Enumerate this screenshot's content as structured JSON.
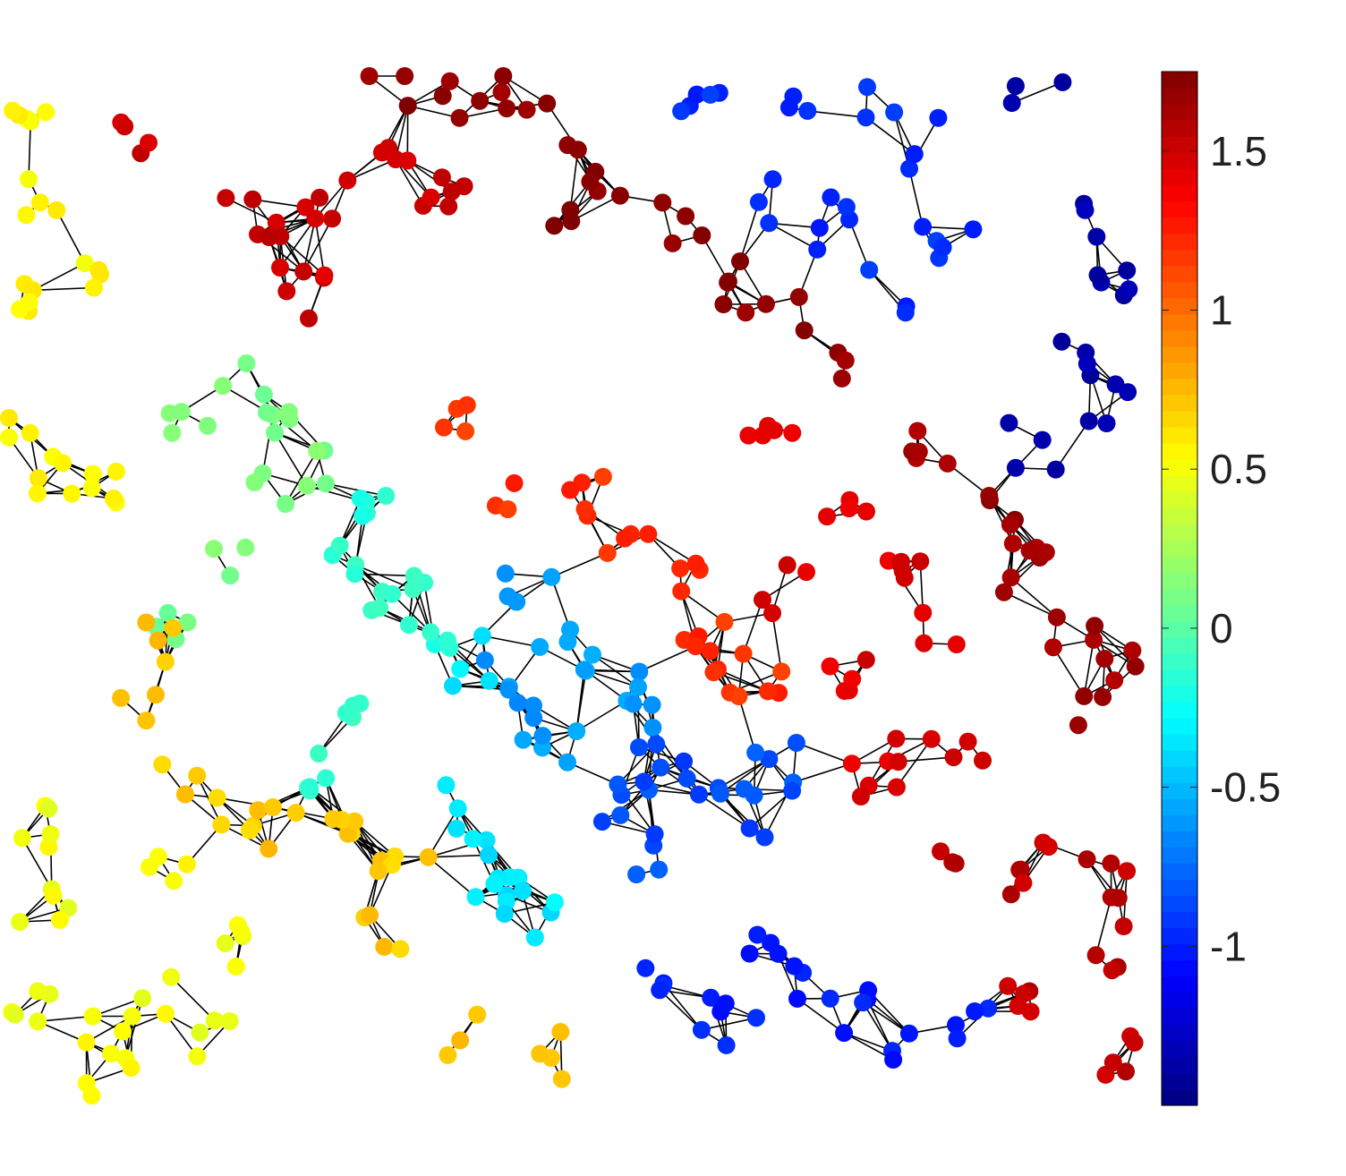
{
  "chart_data": {
    "type": "graph-network",
    "colormap": "jet",
    "colorbar": {
      "min": -1.5,
      "max": 1.75,
      "ticks": [
        {
          "value": 1.5,
          "label": "1.5"
        },
        {
          "value": 1.0,
          "label": "1"
        },
        {
          "value": 0.5,
          "label": "0.5"
        },
        {
          "value": 0.0,
          "label": "0"
        },
        {
          "value": -0.5,
          "label": "-0.5"
        },
        {
          "value": -1.0,
          "label": "-1"
        }
      ]
    },
    "edge_color": "#000000",
    "clusters": [
      {
        "id": "yellow-top-left",
        "value": 0.55
      },
      {
        "id": "red-top",
        "value": 1.5
      },
      {
        "id": "dark-red-top",
        "value": 1.7
      },
      {
        "id": "blue-top-right",
        "value": -0.95
      },
      {
        "id": "navy-right",
        "value": -1.35
      },
      {
        "id": "green-left",
        "value": 0.1
      },
      {
        "id": "teal-center-left",
        "value": -0.15
      },
      {
        "id": "orange-red-center",
        "value": 1.2
      },
      {
        "id": "red-center-right",
        "value": 1.45
      },
      {
        "id": "dark-red-right",
        "value": 1.65
      },
      {
        "id": "light-blue-center",
        "value": -0.6
      },
      {
        "id": "mid-blue-center",
        "value": -0.85
      },
      {
        "id": "cyan-bottom-center",
        "value": -0.35
      },
      {
        "id": "gold-bottom-left",
        "value": 0.7
      },
      {
        "id": "yellow-bottom-left",
        "value": 0.5
      },
      {
        "id": "blue-bottom-right",
        "value": -1.0
      },
      {
        "id": "red-bottom-right",
        "value": 1.55
      }
    ]
  }
}
